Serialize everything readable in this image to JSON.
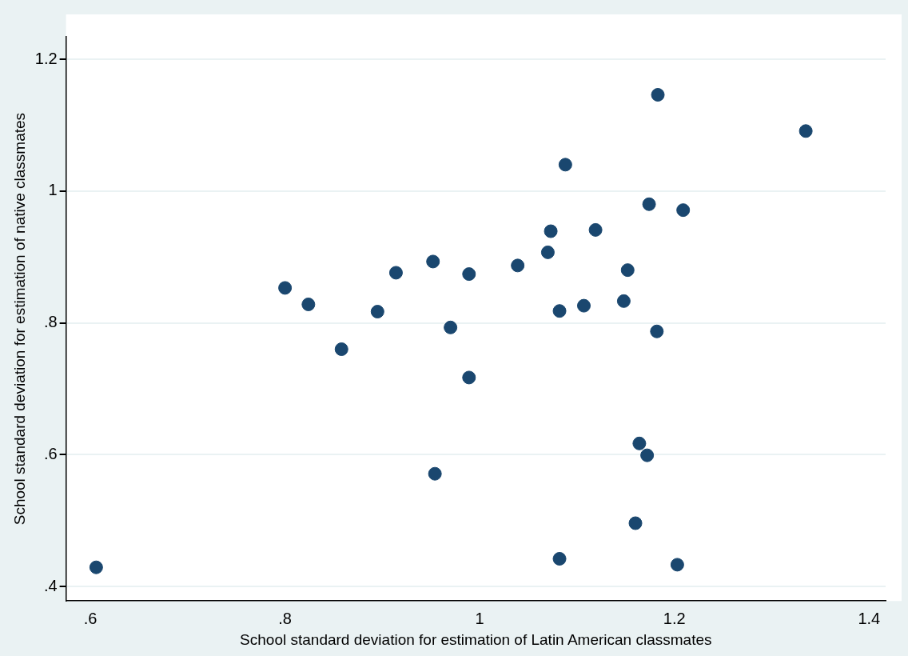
{
  "chart_data": {
    "type": "scatter",
    "xlabel": "School standard deviation for estimation of Latin American classmates",
    "ylabel": "School standard deviation for estimation of native classmates",
    "series": [
      {
        "color": "#1a476f",
        "x": [
          0.606,
          0.8,
          0.824,
          0.858,
          0.895,
          0.914,
          0.952,
          0.954,
          0.97,
          0.989,
          0.989,
          1.039,
          1.07,
          1.073,
          1.088,
          1.082,
          1.082,
          1.107,
          1.119,
          1.148,
          1.152,
          1.16,
          1.164,
          1.172,
          1.174,
          1.182,
          1.183,
          1.203,
          1.209,
          1.335
        ],
        "values": [
          0.429,
          0.853,
          0.828,
          0.76,
          0.817,
          0.876,
          0.893,
          0.571,
          0.793,
          0.874,
          0.717,
          0.887,
          0.907,
          0.939,
          1.04,
          0.818,
          0.442,
          0.826,
          0.941,
          0.833,
          0.88,
          0.496,
          0.617,
          0.599,
          0.98,
          0.787,
          1.146,
          0.433,
          0.971,
          1.091
        ]
      }
    ],
    "xlim": [
      0.575,
      1.417
    ],
    "ylim": [
      0.378,
      1.234
    ],
    "xticks": [
      {
        "value": 0.6,
        "label": ".6"
      },
      {
        "value": 0.8,
        "label": ".8"
      },
      1,
      1.2,
      1.4
    ],
    "yticks": [
      {
        "value": 0.4,
        "label": ".4"
      },
      {
        "value": 0.6,
        "label": ".6"
      },
      {
        "value": 0.8,
        "label": ".8"
      },
      1,
      1.2
    ],
    "grid": "y",
    "legend": false,
    "marker": "circle"
  }
}
